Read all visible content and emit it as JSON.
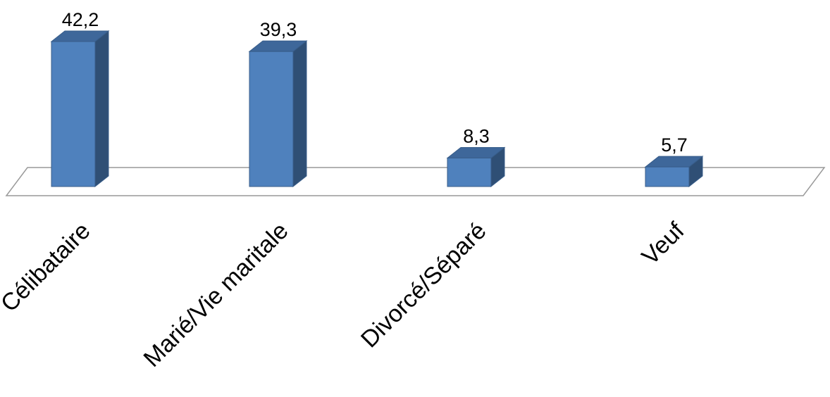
{
  "chart_data": {
    "type": "bar",
    "style": "3d-column",
    "categories": [
      "Célibataire",
      "Marié/Vie maritale",
      "Divorcé/Séparé",
      "Veuf"
    ],
    "values": [
      42.2,
      39.3,
      8.3,
      5.7
    ],
    "value_labels": [
      "42,2",
      "39,3",
      "8,3",
      "5,7"
    ],
    "ylim": [
      0,
      42.2
    ],
    "grid": false,
    "legend": "none",
    "colors": {
      "bar_front": "#4F81BD",
      "bar_side": "#2F4F75",
      "bar_top": "#3E679A",
      "bar_edge": "#385D8A",
      "floor_edge": "#999999"
    }
  }
}
